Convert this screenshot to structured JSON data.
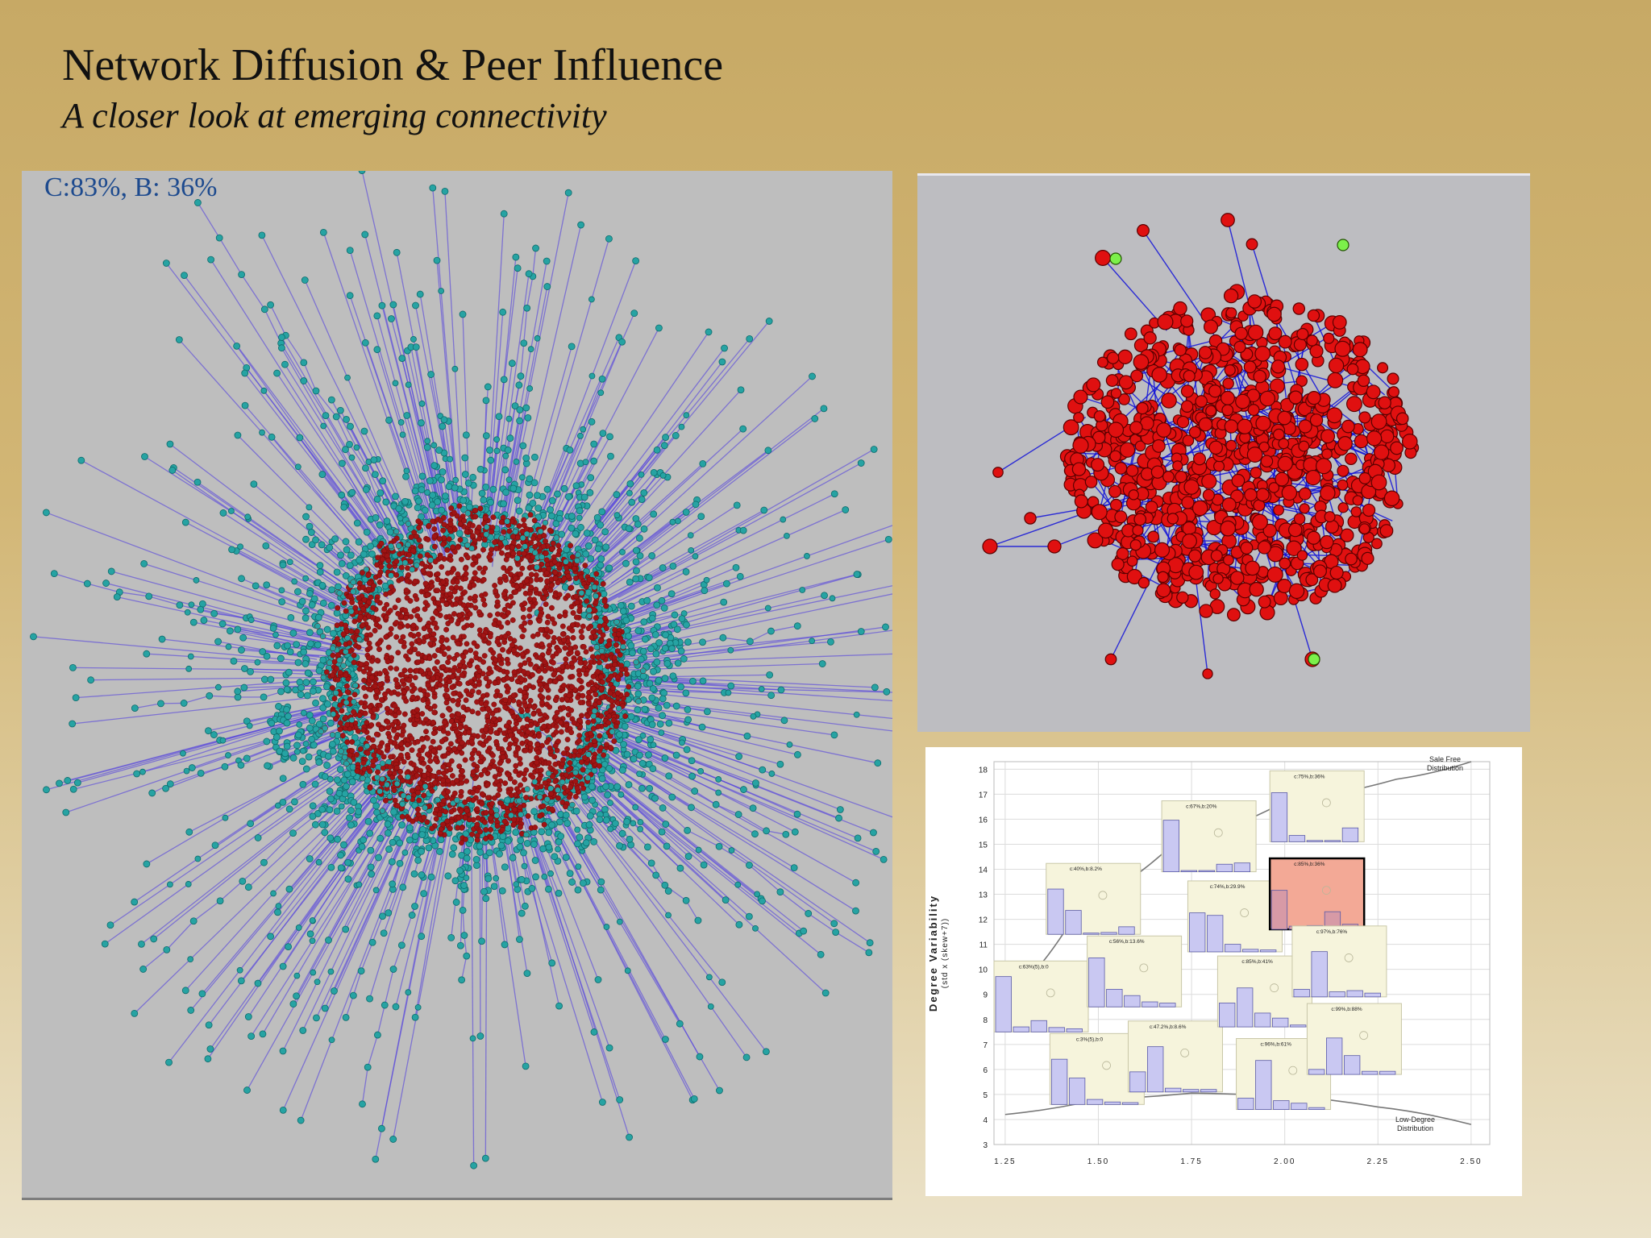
{
  "slide": {
    "title": "Network Diffusion & Peer Influence",
    "subtitle": "A closer look at emerging connectivity"
  },
  "left_panel": {
    "label": "C:83%, B: 36%",
    "colors": {
      "background": "#bebebe",
      "core_node": "#a01414",
      "periphery_node": "#26a3a3",
      "edge": "#5a4adc"
    }
  },
  "topright_panel": {
    "colors": {
      "background": "#bdbdc1",
      "node": "#e01010",
      "edge": "#1010d8",
      "highlight_node": "#7cf04a"
    }
  },
  "chart_data": {
    "type": "scatter",
    "xlabel": "",
    "ylabel": "Degree Variability",
    "ylabel_sub": "(std x (skew+7))",
    "x_ticks": [
      "1.25",
      "1.50",
      "1.75",
      "2.00",
      "2.25",
      "2.50"
    ],
    "y_ticks": [
      "3",
      "4",
      "5",
      "6",
      "7",
      "8",
      "9",
      "10",
      "11",
      "12",
      "13",
      "14",
      "15",
      "16",
      "17",
      "18"
    ],
    "xlim": [
      1.22,
      2.55
    ],
    "ylim": [
      3,
      18.3
    ],
    "grid": true,
    "curves": [
      {
        "name": "Sale Free Distribution",
        "points": [
          [
            1.25,
            8.8
          ],
          [
            1.45,
            12.5
          ],
          [
            1.7,
            15.0
          ],
          [
            2.0,
            16.7
          ],
          [
            2.3,
            17.6
          ],
          [
            2.5,
            18.3
          ]
        ]
      },
      {
        "name": "Low-Degree Distribution",
        "points": [
          [
            1.25,
            4.2
          ],
          [
            1.5,
            4.8
          ],
          [
            1.75,
            5.05
          ],
          [
            2.0,
            4.95
          ],
          [
            2.25,
            4.5
          ],
          [
            2.5,
            3.8
          ]
        ]
      }
    ],
    "annotations": [
      {
        "text": "Sale Free",
        "x": 2.43,
        "y": 18.3
      },
      {
        "text": "Distribution",
        "x": 2.43,
        "y": 17.95
      },
      {
        "text": "Low-Degree",
        "x": 2.35,
        "y": 3.9
      },
      {
        "text": "Distribution",
        "x": 2.35,
        "y": 3.55
      }
    ],
    "insets": [
      {
        "label": "c:63%(5),b:0",
        "x": 1.22,
        "y": 7.5,
        "bars": [
          0.88,
          0.08,
          0.18,
          0.07,
          0.05
        ],
        "highlight": false
      },
      {
        "label": "c:3%(5),b:0",
        "x": 1.37,
        "y": 4.6,
        "bars": [
          0.72,
          0.42,
          0.08,
          0.04,
          0.03
        ],
        "highlight": false
      },
      {
        "label": "c:40%,b:8.2%",
        "x": 1.36,
        "y": 11.4,
        "bars": [
          0.72,
          0.38,
          0.02,
          0.03,
          0.12
        ],
        "highlight": false
      },
      {
        "label": "c:56%,b:13.6%",
        "x": 1.47,
        "y": 8.5,
        "bars": [
          0.78,
          0.28,
          0.18,
          0.08,
          0.06
        ],
        "highlight": false
      },
      {
        "label": "c:47.2%,b:8.6%",
        "x": 1.58,
        "y": 5.1,
        "bars": [
          0.32,
          0.72,
          0.06,
          0.04,
          0.04
        ],
        "highlight": false
      },
      {
        "label": "c:67%,b:20%",
        "x": 1.67,
        "y": 13.9,
        "bars": [
          0.82,
          0.02,
          0.02,
          0.12,
          0.14
        ],
        "highlight": false
      },
      {
        "label": "c:74%,b:29.9%",
        "x": 1.74,
        "y": 10.7,
        "bars": [
          0.62,
          0.58,
          0.12,
          0.04,
          0.03
        ],
        "highlight": false
      },
      {
        "label": "c:85%,b:41%",
        "x": 1.82,
        "y": 7.7,
        "bars": [
          0.38,
          0.62,
          0.22,
          0.14,
          0.03
        ],
        "highlight": false
      },
      {
        "label": "c:96%,b:61%",
        "x": 1.87,
        "y": 4.4,
        "bars": [
          0.18,
          0.78,
          0.14,
          0.1,
          0.03
        ],
        "highlight": false
      },
      {
        "label": "c:75%,b:36%",
        "x": 1.96,
        "y": 15.1,
        "bars": [
          0.78,
          0.1,
          0.02,
          0.02,
          0.22
        ],
        "highlight": false
      },
      {
        "label": "c:85%,b:36%",
        "x": 1.96,
        "y": 11.6,
        "bars": [
          0.62,
          0.05,
          0.06,
          0.28,
          0.08
        ],
        "highlight": true
      },
      {
        "label": "c:97%,b:76%",
        "x": 2.02,
        "y": 8.9,
        "bars": [
          0.12,
          0.72,
          0.08,
          0.1,
          0.06
        ],
        "highlight": false
      },
      {
        "label": "c:99%,b:88%",
        "x": 2.06,
        "y": 5.8,
        "bars": [
          0.08,
          0.58,
          0.3,
          0.05,
          0.05
        ],
        "highlight": false
      }
    ]
  }
}
